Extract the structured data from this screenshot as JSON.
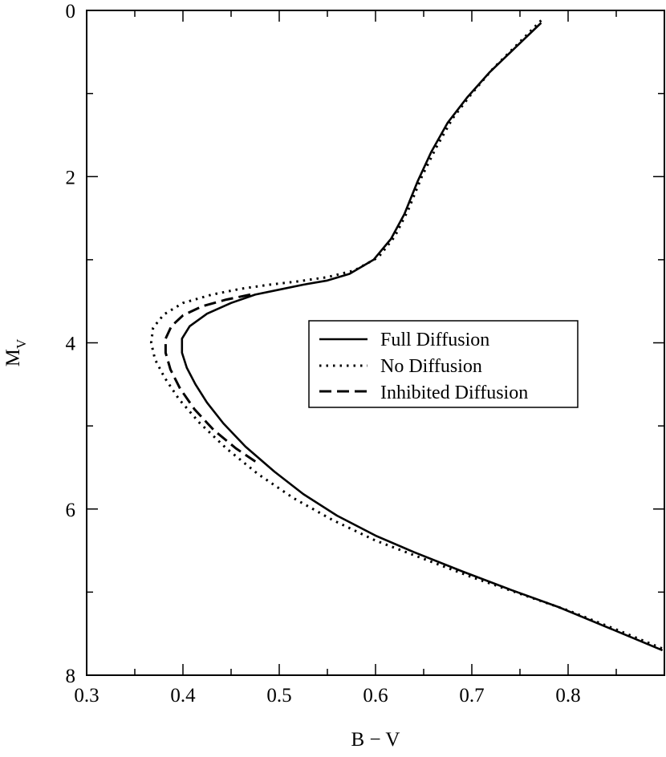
{
  "chart_data": {
    "type": "line",
    "title": "",
    "xlabel": "B − V",
    "ylabel": "M",
    "ylabel_sub": "V",
    "xlim": [
      0.3,
      0.9
    ],
    "ylim": [
      0,
      8
    ],
    "y_inverted": true,
    "grid": false,
    "legend_position": "right-center",
    "x_ticks": [
      {
        "value": 0.3,
        "label": "0.3"
      },
      {
        "value": 0.4,
        "label": "0.4"
      },
      {
        "value": 0.5,
        "label": "0.5"
      },
      {
        "value": 0.6,
        "label": "0.6"
      },
      {
        "value": 0.7,
        "label": "0.7"
      },
      {
        "value": 0.8,
        "label": "0.8"
      }
    ],
    "y_ticks": [
      {
        "value": 0,
        "label": "0"
      },
      {
        "value": 2,
        "label": "2"
      },
      {
        "value": 4,
        "label": "4"
      },
      {
        "value": 6,
        "label": "6"
      },
      {
        "value": 8,
        "label": "8"
      }
    ],
    "series": [
      {
        "name": "Full Diffusion",
        "style": "solid",
        "color": "#000000",
        "points": [
          [
            0.772,
            0.15
          ],
          [
            0.745,
            0.45
          ],
          [
            0.718,
            0.75
          ],
          [
            0.695,
            1.05
          ],
          [
            0.675,
            1.35
          ],
          [
            0.658,
            1.7
          ],
          [
            0.644,
            2.05
          ],
          [
            0.63,
            2.45
          ],
          [
            0.616,
            2.75
          ],
          [
            0.598,
            3.0
          ],
          [
            0.573,
            3.17
          ],
          [
            0.55,
            3.25
          ],
          [
            0.525,
            3.3
          ],
          [
            0.5,
            3.36
          ],
          [
            0.475,
            3.42
          ],
          [
            0.45,
            3.52
          ],
          [
            0.425,
            3.65
          ],
          [
            0.407,
            3.8
          ],
          [
            0.399,
            3.95
          ],
          [
            0.399,
            4.12
          ],
          [
            0.404,
            4.3
          ],
          [
            0.413,
            4.5
          ],
          [
            0.425,
            4.72
          ],
          [
            0.442,
            4.97
          ],
          [
            0.465,
            5.25
          ],
          [
            0.495,
            5.55
          ],
          [
            0.525,
            5.82
          ],
          [
            0.56,
            6.08
          ],
          [
            0.6,
            6.32
          ],
          [
            0.64,
            6.52
          ],
          [
            0.69,
            6.75
          ],
          [
            0.74,
            6.97
          ],
          [
            0.79,
            7.18
          ],
          [
            0.84,
            7.42
          ],
          [
            0.898,
            7.7
          ]
        ]
      },
      {
        "name": "No Diffusion",
        "style": "dotted",
        "color": "#000000",
        "points": [
          [
            0.772,
            0.12
          ],
          [
            0.748,
            0.4
          ],
          [
            0.722,
            0.7
          ],
          [
            0.7,
            1.0
          ],
          [
            0.68,
            1.3
          ],
          [
            0.663,
            1.65
          ],
          [
            0.648,
            2.0
          ],
          [
            0.634,
            2.4
          ],
          [
            0.62,
            2.72
          ],
          [
            0.603,
            2.97
          ],
          [
            0.578,
            3.13
          ],
          [
            0.55,
            3.21
          ],
          [
            0.52,
            3.26
          ],
          [
            0.49,
            3.3
          ],
          [
            0.46,
            3.35
          ],
          [
            0.43,
            3.42
          ],
          [
            0.4,
            3.52
          ],
          [
            0.38,
            3.66
          ],
          [
            0.369,
            3.82
          ],
          [
            0.367,
            4.0
          ],
          [
            0.371,
            4.2
          ],
          [
            0.381,
            4.42
          ],
          [
            0.396,
            4.68
          ],
          [
            0.417,
            4.96
          ],
          [
            0.445,
            5.27
          ],
          [
            0.478,
            5.58
          ],
          [
            0.515,
            5.87
          ],
          [
            0.555,
            6.13
          ],
          [
            0.6,
            6.38
          ],
          [
            0.65,
            6.6
          ],
          [
            0.7,
            6.82
          ],
          [
            0.75,
            7.02
          ],
          [
            0.8,
            7.22
          ],
          [
            0.85,
            7.45
          ],
          [
            0.898,
            7.68
          ]
        ]
      },
      {
        "name": "Inhibited Diffusion",
        "style": "dashed",
        "color": "#000000",
        "points": [
          [
            0.47,
            3.42
          ],
          [
            0.445,
            3.48
          ],
          [
            0.42,
            3.56
          ],
          [
            0.4,
            3.67
          ],
          [
            0.388,
            3.8
          ],
          [
            0.382,
            3.95
          ],
          [
            0.382,
            4.12
          ],
          [
            0.387,
            4.32
          ],
          [
            0.397,
            4.55
          ],
          [
            0.412,
            4.8
          ],
          [
            0.432,
            5.05
          ],
          [
            0.455,
            5.27
          ],
          [
            0.478,
            5.45
          ]
        ]
      }
    ]
  }
}
